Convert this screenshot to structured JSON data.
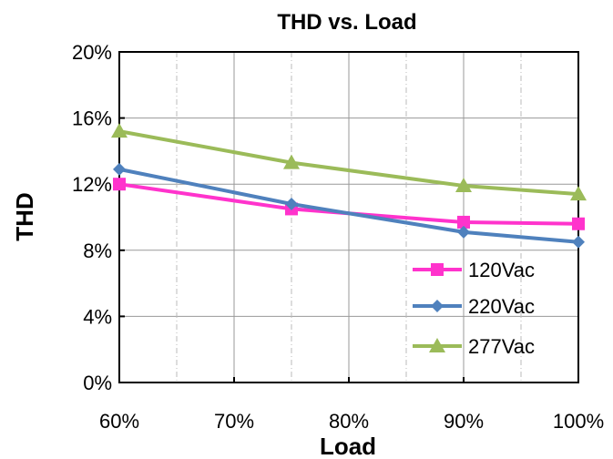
{
  "chart_data": {
    "type": "line",
    "title": "THD vs. Load",
    "xlabel": "Load",
    "ylabel": "THD",
    "x": [
      60,
      75,
      90,
      100
    ],
    "x_tick_labels": [
      "60%",
      "70%",
      "80%",
      "90%",
      "100%"
    ],
    "x_ticks": [
      60,
      70,
      80,
      90,
      100
    ],
    "xlim": [
      60,
      100
    ],
    "y_tick_labels": [
      "0%",
      "4%",
      "8%",
      "12%",
      "16%",
      "20%"
    ],
    "y_ticks": [
      0,
      4,
      8,
      12,
      16,
      20
    ],
    "ylim": [
      0,
      20
    ],
    "y_unit": "%",
    "grid": true,
    "legend_position": "bottom-right",
    "series": [
      {
        "name": "120Vac",
        "color": "#ff33cc",
        "marker": "square",
        "values": [
          12.0,
          10.5,
          9.7,
          9.6
        ]
      },
      {
        "name": "220Vac",
        "color": "#4f81bd",
        "marker": "diamond",
        "values": [
          12.9,
          10.8,
          9.1,
          8.5
        ]
      },
      {
        "name": "277Vac",
        "color": "#9bbb59",
        "marker": "triangle",
        "values": [
          15.2,
          13.3,
          11.9,
          11.4
        ]
      }
    ]
  }
}
